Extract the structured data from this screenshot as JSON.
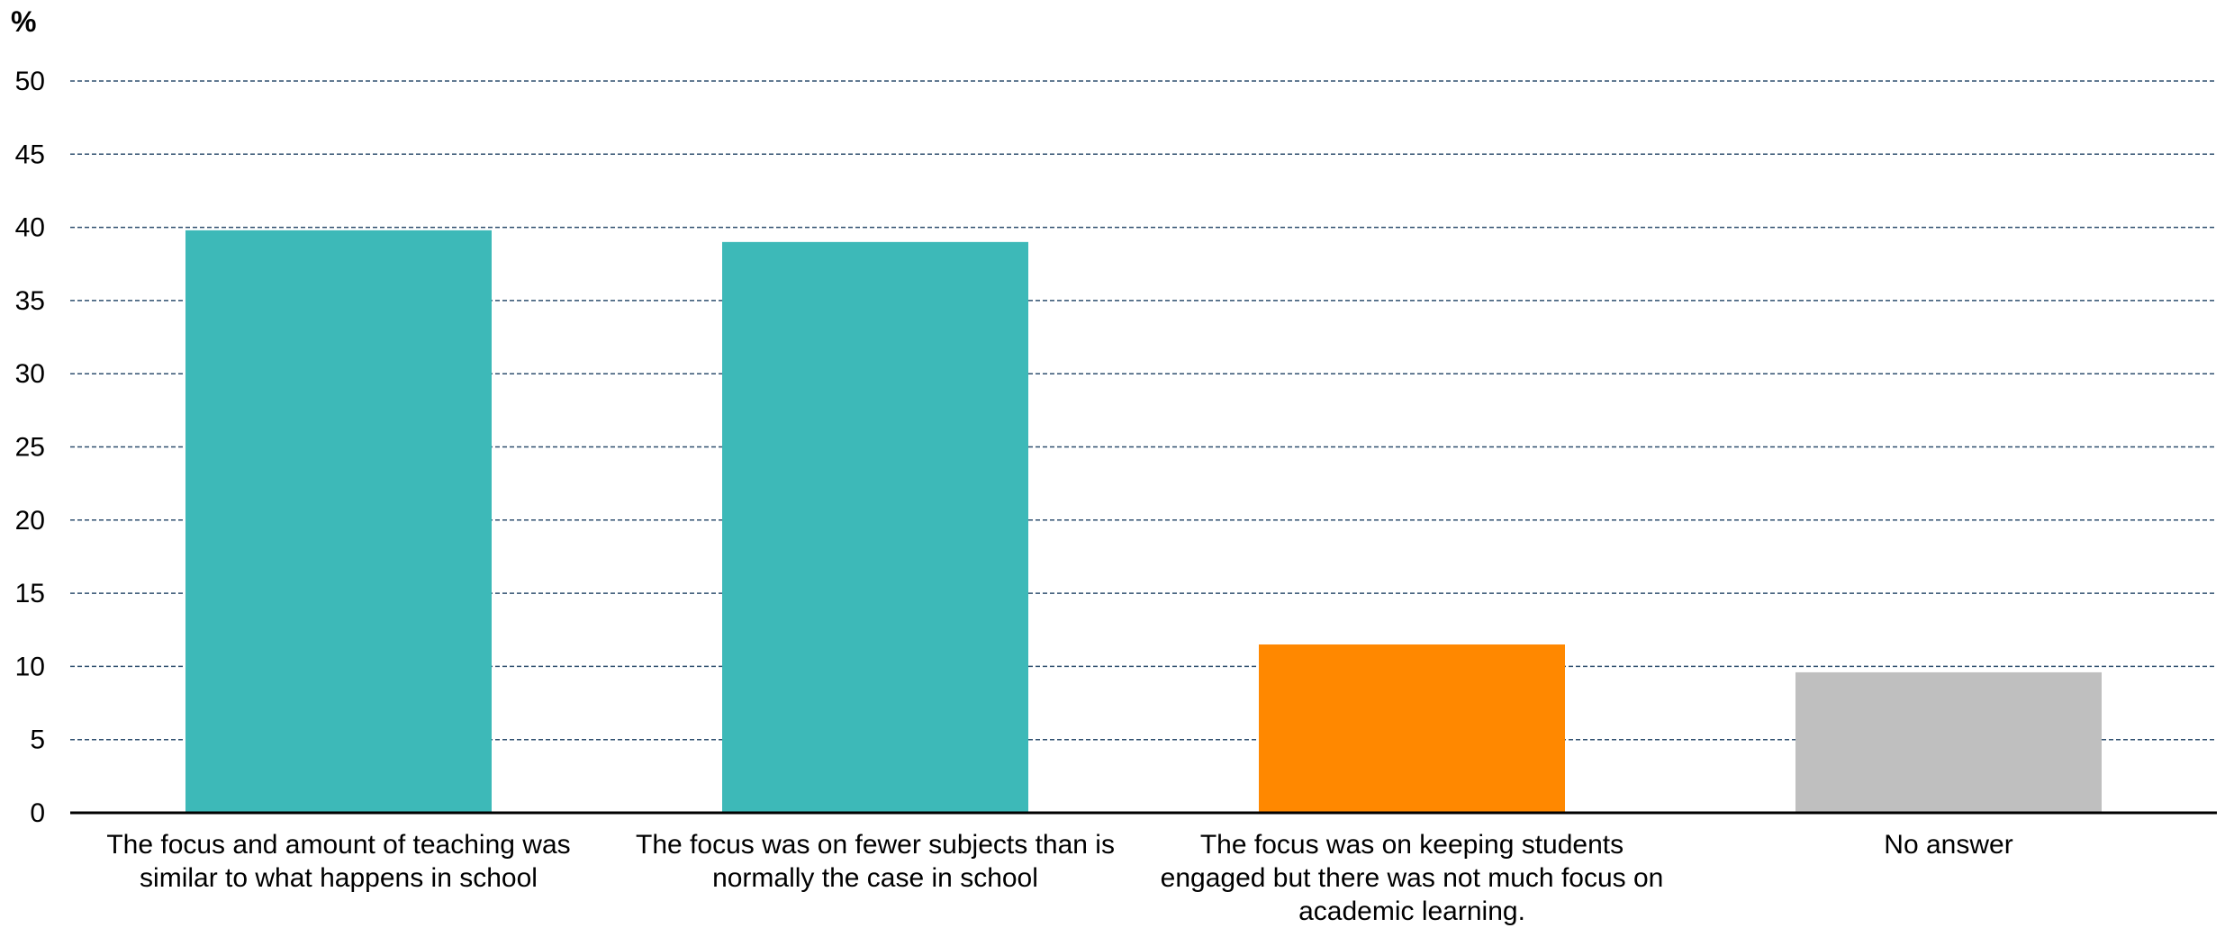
{
  "chart_data": {
    "type": "bar",
    "title": "",
    "xlabel": "",
    "ylabel": "%",
    "ylim": [
      0,
      50
    ],
    "yticks": [
      0,
      5,
      10,
      15,
      20,
      25,
      30,
      35,
      40,
      45,
      50
    ],
    "grid": true,
    "legend": "none",
    "categories": [
      "The focus and amount of teaching was similar to what happens in school",
      "The focus was on fewer subjects than is normally the case in school",
      "The focus was on keeping students engaged but there was not much focus on academic learning.",
      "No answer"
    ],
    "values": [
      39.8,
      39.0,
      11.5,
      9.6
    ],
    "colors": [
      "#3db9b8",
      "#3db9b8",
      "#ff8800",
      "#bfbfbf"
    ]
  }
}
